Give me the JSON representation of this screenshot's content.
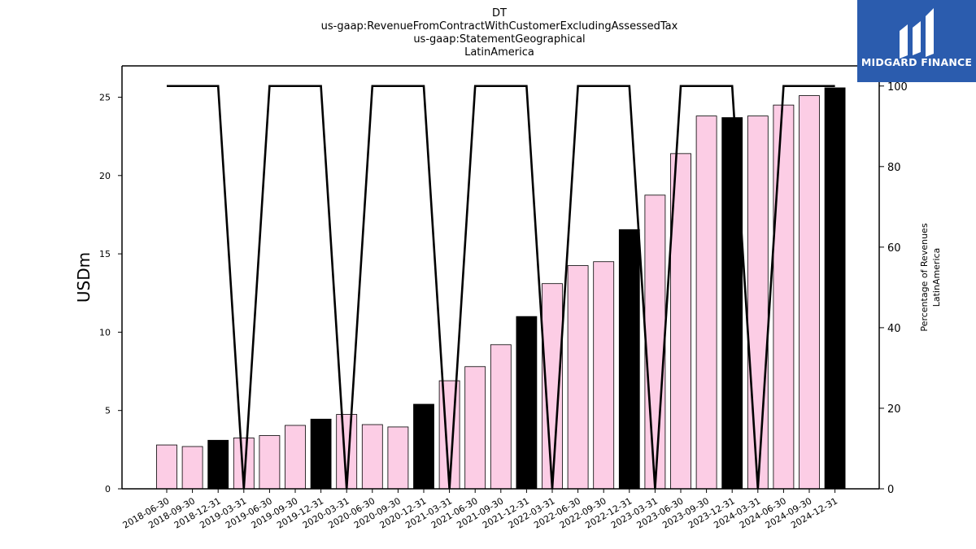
{
  "chart_data": {
    "type": "bar",
    "title": [
      "DT",
      "us-gaap:RevenueFromContractWithCustomerExcludingAssessedTax",
      "us-gaap:StatementGeographical",
      "LatinAmerica"
    ],
    "ylabel": "USDm",
    "ylabel_right": [
      "Percentage of Revenues",
      "LatinAmerica"
    ],
    "ylim": [
      0,
      27
    ],
    "ylim_right": [
      0,
      105
    ],
    "yticks": [
      0,
      5,
      10,
      15,
      20,
      25
    ],
    "yticks_right": [
      0,
      20,
      40,
      60,
      80,
      100
    ],
    "categories": [
      "2018-06-30",
      "2018-09-30",
      "2018-12-31",
      "2019-03-31",
      "2019-06-30",
      "2019-09-30",
      "2019-12-31",
      "2020-03-31",
      "2020-06-30",
      "2020-09-30",
      "2020-12-31",
      "2021-03-31",
      "2021-06-30",
      "2021-09-30",
      "2021-12-31",
      "2022-03-31",
      "2022-06-30",
      "2022-09-30",
      "2022-12-31",
      "2023-03-31",
      "2023-06-30",
      "2023-09-30",
      "2023-12-31",
      "2024-03-31",
      "2024-06-30",
      "2024-09-30",
      "2024-12-31"
    ],
    "series": [
      {
        "values": [
          2.8,
          2.7,
          3.1,
          3.25,
          3.4,
          4.05,
          4.45,
          4.75,
          4.1,
          3.95,
          5.4,
          6.9,
          7.8,
          9.2,
          11.0,
          13.1,
          14.25,
          14.5,
          16.55,
          18.75,
          21.4,
          23.8,
          23.7,
          23.8,
          24.5,
          25.1,
          25.6
        ],
        "highlight": [
          false,
          false,
          true,
          false,
          false,
          false,
          true,
          false,
          false,
          false,
          true,
          false,
          false,
          false,
          true,
          false,
          false,
          false,
          true,
          false,
          false,
          false,
          true,
          false,
          false,
          false,
          true
        ]
      },
      {
        "axis": "right",
        "type": "line",
        "values": [
          100,
          100,
          100,
          0,
          100,
          100,
          100,
          0,
          100,
          100,
          100,
          0,
          100,
          100,
          100,
          0,
          100,
          100,
          100,
          0,
          100,
          100,
          100,
          0,
          100,
          100,
          100
        ]
      }
    ],
    "colors": {
      "bar": "#fccde5",
      "bar_highlight": "#000000",
      "line": "#000000"
    },
    "grid": false
  },
  "logo": {
    "text": "MIDGARD FINANCE",
    "bg": "#2b5cae"
  }
}
